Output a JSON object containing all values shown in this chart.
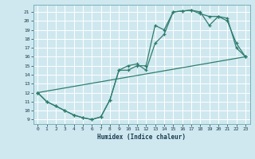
{
  "xlabel": "Humidex (Indice chaleur)",
  "bg_color": "#cfe8ef",
  "grid_color": "#ffffff",
  "line_color": "#2e7d6e",
  "xlim": [
    -0.5,
    23.5
  ],
  "ylim": [
    8.5,
    21.8
  ],
  "xticks": [
    0,
    1,
    2,
    3,
    4,
    5,
    6,
    7,
    8,
    9,
    10,
    11,
    12,
    13,
    14,
    15,
    16,
    17,
    18,
    19,
    20,
    21,
    22,
    23
  ],
  "yticks": [
    9,
    10,
    11,
    12,
    13,
    14,
    15,
    16,
    17,
    18,
    19,
    20,
    21
  ],
  "line1_x": [
    0,
    1,
    2,
    3,
    4,
    5,
    6,
    7,
    8,
    9,
    10,
    11,
    12,
    13,
    14,
    15,
    16,
    17,
    18,
    19,
    20,
    21,
    22,
    23
  ],
  "line1_y": [
    12,
    11,
    10.5,
    10,
    9.5,
    9.2,
    9,
    9.3,
    11.2,
    14.5,
    14.5,
    15,
    15,
    19.5,
    19.0,
    21.0,
    21.1,
    21.2,
    20.8,
    20.5,
    20.5,
    20.3,
    17.0,
    16.0
  ],
  "line2_x": [
    0,
    1,
    2,
    3,
    4,
    5,
    6,
    7,
    8,
    9,
    10,
    11,
    12,
    13,
    14,
    15,
    16,
    17,
    18,
    19,
    20,
    21,
    22,
    23
  ],
  "line2_y": [
    12,
    11,
    10.5,
    10,
    9.5,
    9.2,
    9,
    9.3,
    11.2,
    14.5,
    15,
    15.2,
    14.5,
    17.5,
    18.5,
    21.0,
    21.1,
    21.2,
    21.0,
    19.5,
    20.5,
    20.0,
    17.5,
    16.0
  ],
  "line3_x": [
    0,
    23
  ],
  "line3_y": [
    12,
    16
  ]
}
